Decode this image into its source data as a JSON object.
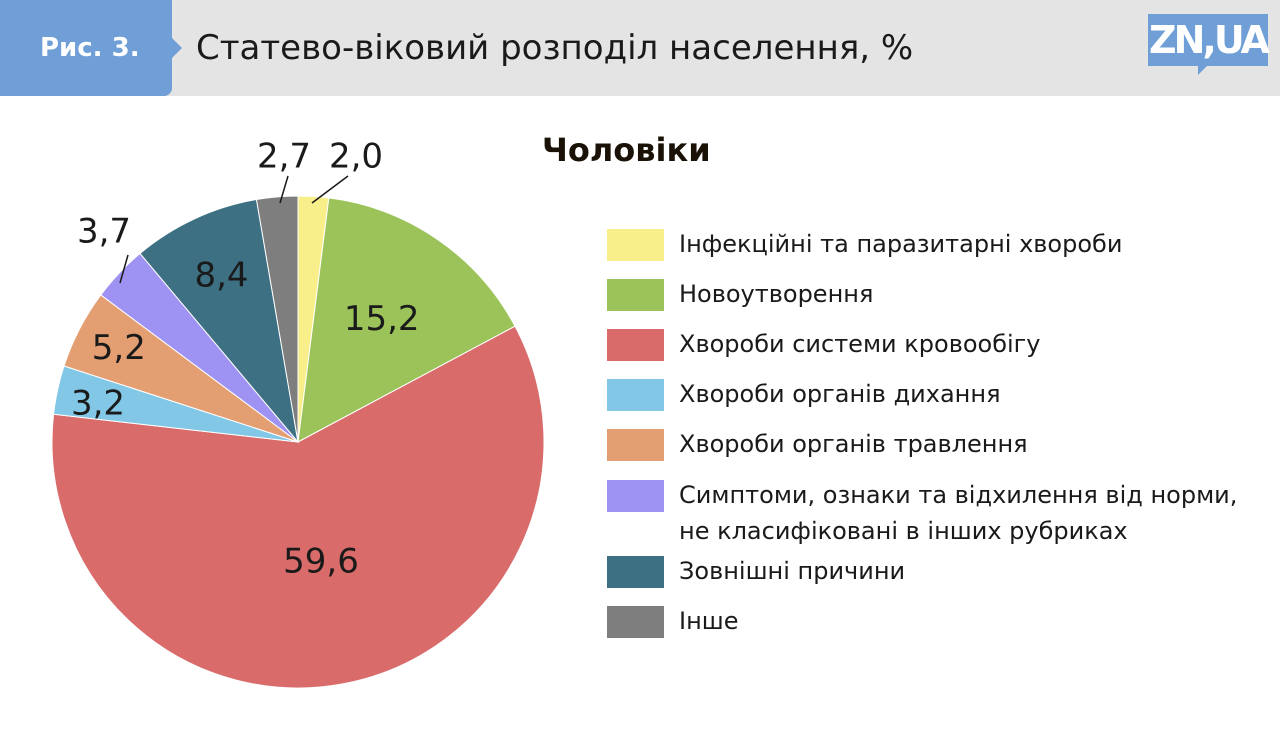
{
  "header": {
    "figure_label": "Рис. 3.",
    "title": "Статево-віковий розподіл населення, %",
    "logo": "ZN,UA"
  },
  "colors": {
    "header_bg": "#e4e4e4",
    "accent": "#6f9fd6"
  },
  "chart_data": {
    "type": "pie",
    "title": "Статево-віковий розподіл населення, %",
    "subtitle": "Чоловіки",
    "legend_position": "right",
    "slices": [
      {
        "label": "Інфекційні та паразитарні хвороби",
        "value": 2.0,
        "value_label": "2,0",
        "color": "#f8ef8b"
      },
      {
        "label": "Новоутворення",
        "value": 15.2,
        "value_label": "15,2",
        "color": "#9cc35a"
      },
      {
        "label": "Хвороби системи кровообігу",
        "value": 59.6,
        "value_label": "59,6",
        "color": "#d96b6b"
      },
      {
        "label": "Хвороби органів дихання",
        "value": 3.2,
        "value_label": "3,2",
        "color": "#82c7e6"
      },
      {
        "label": "Хвороби органів травлення",
        "value": 5.2,
        "value_label": "5,2",
        "color": "#e39f72"
      },
      {
        "label": "Симптоми, ознаки та відхилення від норми, не класифіковані в інших рубриках",
        "value": 3.7,
        "value_label": "3,7",
        "color": "#9e93f3"
      },
      {
        "label": "Зовнішні причини",
        "value": 8.4,
        "value_label": "8,4",
        "color": "#3d7082"
      },
      {
        "label": "Інше",
        "value": 2.7,
        "value_label": "2,7",
        "color": "#7e7e7e"
      }
    ]
  }
}
